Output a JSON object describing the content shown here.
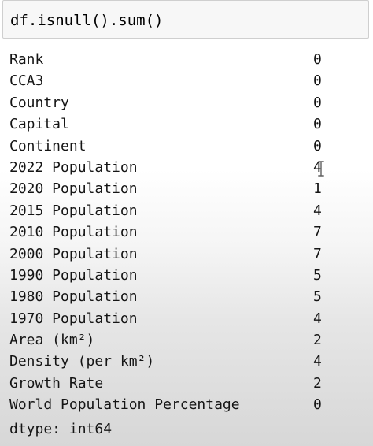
{
  "input_cell": {
    "code": "df.isnull().sum()"
  },
  "output": {
    "rows": [
      {
        "name": "Rank",
        "count": "0"
      },
      {
        "name": "CCA3",
        "count": "0"
      },
      {
        "name": "Country",
        "count": "0"
      },
      {
        "name": "Capital",
        "count": "0"
      },
      {
        "name": "Continent",
        "count": "0"
      },
      {
        "name": "2022 Population",
        "count": "4"
      },
      {
        "name": "2020 Population",
        "count": "1"
      },
      {
        "name": "2015 Population",
        "count": "4"
      },
      {
        "name": "2010 Population",
        "count": "7"
      },
      {
        "name": "2000 Population",
        "count": "7"
      },
      {
        "name": "1990 Population",
        "count": "5"
      },
      {
        "name": "1980 Population",
        "count": "5"
      },
      {
        "name": "1970 Population",
        "count": "4"
      },
      {
        "name": "Area (km²)",
        "count": "2"
      },
      {
        "name": "Density (per km²)",
        "count": "4"
      },
      {
        "name": "Growth Rate",
        "count": "2"
      },
      {
        "name": "World Population Percentage",
        "count": "0"
      }
    ],
    "dtype": "dtype: int64"
  },
  "cursor": {
    "icon": "text-cursor-icon"
  }
}
